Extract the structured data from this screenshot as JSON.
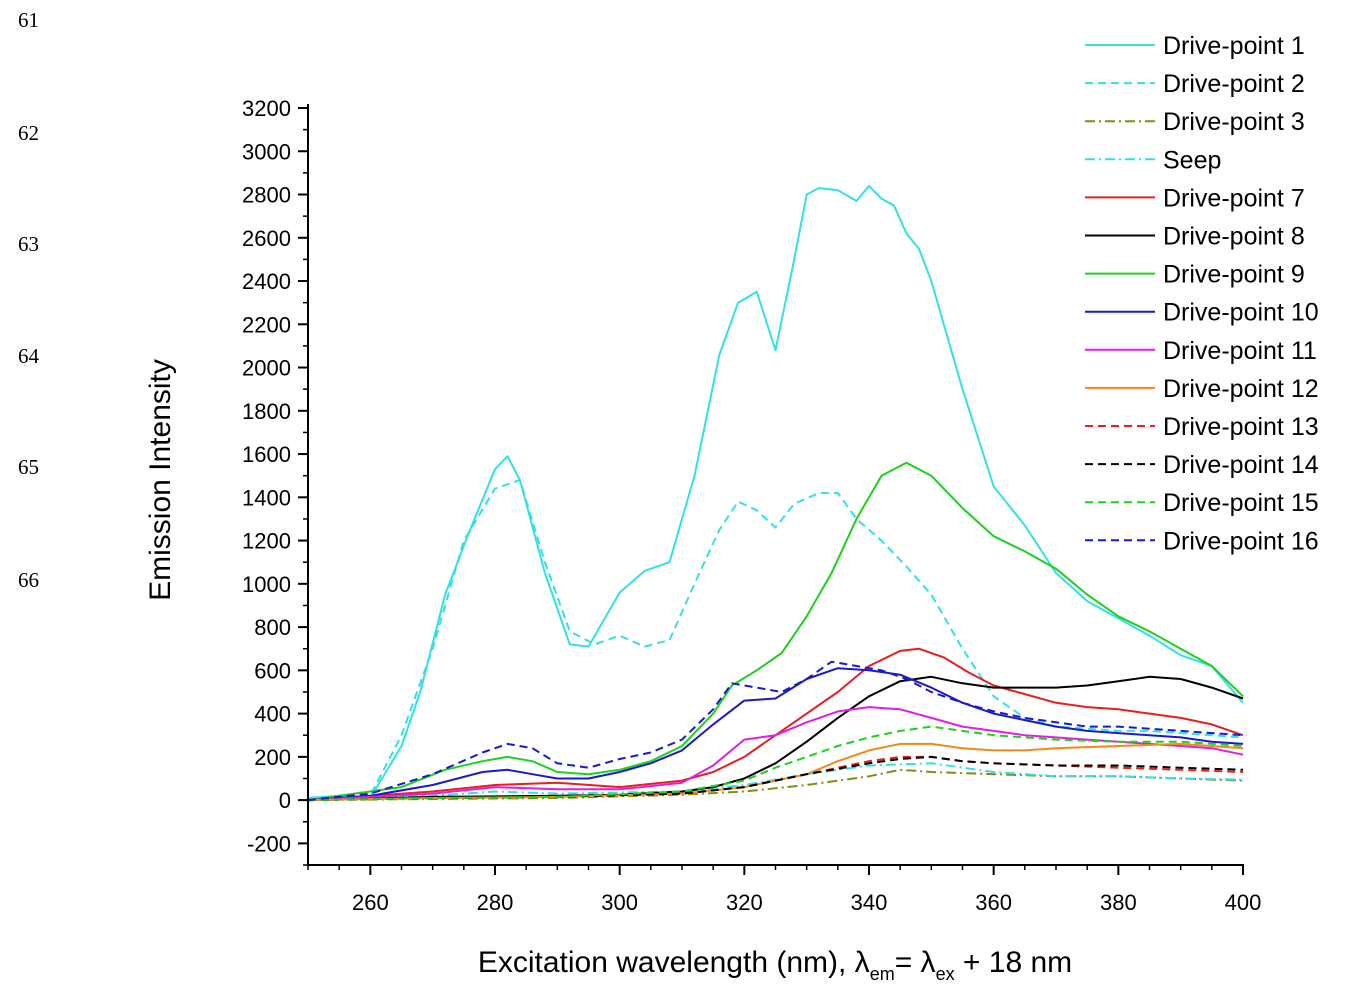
{
  "line_numbers": [
    "61",
    "62",
    "63",
    "64",
    "65",
    "66"
  ],
  "chart_data": {
    "type": "line",
    "xlabel": "Excitation wavelength (nm), λ_em = λ_ex + 18 nm",
    "xlabel_parts": {
      "main": "Excitation wavelength (nm), λ",
      "sub1": "em",
      "mid": "= λ",
      "sub2": "ex",
      "tail": " + 18 nm"
    },
    "ylabel": "Emission Intensity",
    "xlim": [
      250,
      400
    ],
    "ylim": [
      -300,
      3200
    ],
    "xticks": [
      260,
      280,
      300,
      320,
      340,
      360,
      380,
      400
    ],
    "yticks": [
      -200,
      0,
      200,
      400,
      600,
      800,
      1000,
      1200,
      1400,
      1600,
      1800,
      2000,
      2200,
      2400,
      2600,
      2800,
      3000,
      3200
    ],
    "legend_position": "top-right",
    "grid": false,
    "series": [
      {
        "name": "Drive-point 1",
        "color": "#33e0e8",
        "dash": "solid",
        "x": [
          250,
          255,
          260,
          265,
          268,
          272,
          276,
          280,
          282,
          284,
          288,
          292,
          295,
          298,
          300,
          304,
          308,
          312,
          316,
          319,
          322,
          325,
          328,
          330,
          332,
          335,
          338,
          340,
          342,
          344,
          346,
          348,
          350,
          355,
          360,
          365,
          370,
          375,
          380,
          385,
          390,
          395,
          400
        ],
        "y": [
          10,
          20,
          10,
          250,
          500,
          950,
          1250,
          1530,
          1590,
          1480,
          1050,
          720,
          710,
          860,
          960,
          1060,
          1100,
          1500,
          2060,
          2300,
          2350,
          2080,
          2500,
          2800,
          2830,
          2820,
          2770,
          2840,
          2780,
          2750,
          2620,
          2550,
          2400,
          1900,
          1450,
          1270,
          1050,
          920,
          840,
          760,
          670,
          620,
          450
        ]
      },
      {
        "name": "Drive-point 2",
        "color": "#33e0e8",
        "dash": "8,5",
        "x": [
          250,
          260,
          265,
          270,
          275,
          280,
          284,
          288,
          292,
          296,
          300,
          304,
          308,
          312,
          316,
          319,
          322,
          325,
          328,
          332,
          335,
          338,
          342,
          346,
          350,
          355,
          360,
          365,
          370,
          375,
          380,
          385,
          390,
          395,
          400
        ],
        "y": [
          10,
          20,
          300,
          700,
          1200,
          1440,
          1480,
          1100,
          780,
          720,
          760,
          710,
          740,
          1000,
          1250,
          1380,
          1340,
          1260,
          1370,
          1420,
          1420,
          1300,
          1200,
          1080,
          950,
          700,
          480,
          380,
          340,
          330,
          320,
          320,
          310,
          300,
          290
        ]
      },
      {
        "name": "Drive-point 3",
        "color": "#8a8a10",
        "dash": "10,4,2,4",
        "x": [
          250,
          270,
          290,
          310,
          320,
          330,
          340,
          345,
          350,
          360,
          370,
          380,
          390,
          400
        ],
        "y": [
          0,
          5,
          10,
          25,
          40,
          70,
          110,
          140,
          130,
          120,
          110,
          110,
          100,
          90
        ]
      },
      {
        "name": "Seep",
        "color": "#33e0e8",
        "dash": "10,4,2,4",
        "x": [
          250,
          270,
          280,
          290,
          310,
          320,
          330,
          340,
          350,
          360,
          370,
          380,
          390,
          400
        ],
        "y": [
          0,
          20,
          40,
          30,
          40,
          70,
          120,
          160,
          170,
          130,
          110,
          110,
          100,
          95
        ]
      },
      {
        "name": "Drive-point 7",
        "color": "#e52020",
        "dash": "solid",
        "x": [
          250,
          270,
          280,
          290,
          300,
          310,
          315,
          320,
          325,
          330,
          335,
          340,
          345,
          348,
          352,
          356,
          360,
          365,
          370,
          375,
          380,
          385,
          390,
          395,
          400
        ],
        "y": [
          0,
          40,
          70,
          80,
          60,
          90,
          130,
          200,
          300,
          400,
          500,
          620,
          690,
          700,
          660,
          590,
          530,
          490,
          450,
          430,
          420,
          400,
          380,
          350,
          300
        ]
      },
      {
        "name": "Drive-point 8",
        "color": "#000000",
        "dash": "solid",
        "x": [
          250,
          270,
          290,
          300,
          310,
          315,
          320,
          325,
          330,
          335,
          340,
          345,
          350,
          355,
          360,
          365,
          370,
          375,
          380,
          385,
          390,
          395,
          400
        ],
        "y": [
          0,
          15,
          20,
          25,
          40,
          60,
          100,
          170,
          270,
          380,
          480,
          550,
          570,
          540,
          520,
          520,
          520,
          530,
          550,
          570,
          560,
          520,
          470
        ]
      },
      {
        "name": "Drive-point 9",
        "color": "#1ed11e",
        "dash": "solid",
        "x": [
          250,
          265,
          272,
          278,
          282,
          286,
          290,
          295,
          300,
          305,
          310,
          315,
          318,
          322,
          326,
          330,
          334,
          338,
          342,
          346,
          350,
          355,
          360,
          365,
          370,
          375,
          380,
          385,
          390,
          395,
          400
        ],
        "y": [
          0,
          60,
          140,
          180,
          200,
          180,
          130,
          120,
          140,
          180,
          250,
          400,
          530,
          600,
          680,
          850,
          1050,
          1300,
          1500,
          1560,
          1500,
          1350,
          1220,
          1150,
          1070,
          950,
          850,
          780,
          700,
          620,
          480
        ]
      },
      {
        "name": "Drive-point 10",
        "color": "#1a1acc",
        "dash": "solid",
        "x": [
          250,
          260,
          270,
          278,
          282,
          286,
          290,
          295,
          300,
          305,
          310,
          315,
          320,
          325,
          330,
          335,
          340,
          345,
          350,
          355,
          360,
          365,
          370,
          375,
          380,
          385,
          390,
          395,
          400
        ],
        "y": [
          0,
          20,
          70,
          130,
          140,
          120,
          100,
          100,
          130,
          170,
          230,
          350,
          460,
          470,
          560,
          610,
          600,
          580,
          520,
          450,
          400,
          370,
          340,
          320,
          310,
          300,
          290,
          270,
          260
        ]
      },
      {
        "name": "Drive-point 11",
        "color": "#e020e0",
        "dash": "solid",
        "x": [
          250,
          270,
          280,
          290,
          300,
          310,
          315,
          320,
          325,
          330,
          335,
          340,
          345,
          350,
          355,
          360,
          365,
          370,
          375,
          380,
          385,
          390,
          395,
          400
        ],
        "y": [
          0,
          30,
          60,
          50,
          50,
          80,
          160,
          280,
          300,
          360,
          410,
          430,
          420,
          380,
          340,
          320,
          300,
          290,
          280,
          270,
          260,
          250,
          240,
          210
        ]
      },
      {
        "name": "Drive-point 12",
        "color": "#f08a1e",
        "dash": "solid",
        "x": [
          250,
          270,
          290,
          310,
          320,
          330,
          335,
          340,
          345,
          350,
          355,
          360,
          365,
          370,
          380,
          390,
          400
        ],
        "y": [
          0,
          10,
          15,
          30,
          60,
          120,
          180,
          230,
          260,
          260,
          240,
          230,
          230,
          240,
          250,
          260,
          240
        ]
      },
      {
        "name": "Drive-point 13",
        "color": "#e52020",
        "dash": "8,5",
        "x": [
          250,
          270,
          290,
          310,
          320,
          330,
          340,
          345,
          350,
          355,
          360,
          370,
          380,
          390,
          400
        ],
        "y": [
          0,
          10,
          15,
          30,
          60,
          120,
          180,
          200,
          200,
          180,
          170,
          160,
          150,
          140,
          130
        ]
      },
      {
        "name": "Drive-point 14",
        "color": "#000000",
        "dash": "8,5",
        "x": [
          250,
          270,
          290,
          310,
          320,
          330,
          340,
          345,
          350,
          355,
          360,
          370,
          380,
          390,
          400
        ],
        "y": [
          0,
          10,
          15,
          30,
          60,
          120,
          170,
          190,
          200,
          180,
          170,
          160,
          160,
          150,
          140
        ]
      },
      {
        "name": "Drive-point 15",
        "color": "#1ed11e",
        "dash": "8,5",
        "x": [
          250,
          270,
          290,
          310,
          320,
          325,
          330,
          335,
          340,
          345,
          350,
          355,
          360,
          365,
          370,
          380,
          390,
          400
        ],
        "y": [
          0,
          10,
          15,
          40,
          90,
          150,
          200,
          250,
          290,
          320,
          340,
          320,
          300,
          290,
          280,
          270,
          270,
          250
        ]
      },
      {
        "name": "Drive-point 16",
        "color": "#1a1acc",
        "dash": "8,5",
        "x": [
          250,
          260,
          270,
          278,
          282,
          286,
          290,
          295,
          300,
          305,
          310,
          315,
          318,
          322,
          326,
          330,
          334,
          338,
          342,
          346,
          350,
          355,
          360,
          365,
          370,
          375,
          380,
          385,
          390,
          395,
          400
        ],
        "y": [
          0,
          30,
          120,
          220,
          260,
          240,
          170,
          150,
          190,
          220,
          280,
          420,
          540,
          520,
          500,
          560,
          640,
          620,
          600,
          560,
          500,
          450,
          410,
          380,
          360,
          340,
          340,
          330,
          320,
          310,
          300
        ]
      }
    ]
  }
}
